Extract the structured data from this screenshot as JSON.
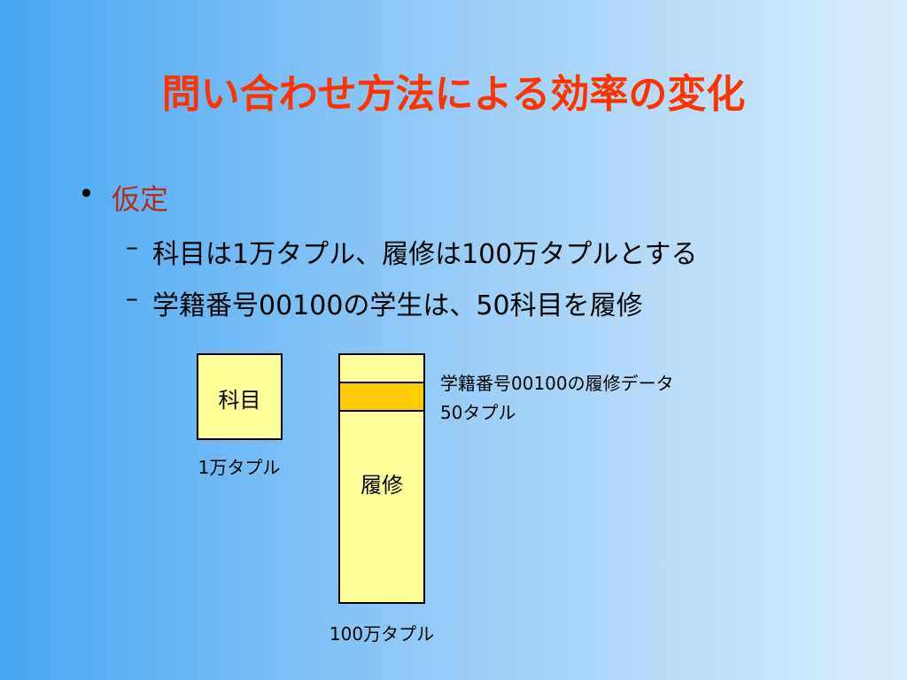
{
  "header": {
    "title": "問い合わせ方法による効率の変化"
  },
  "bullets": [
    {
      "text": "仮定",
      "sub": [
        "科目は1万タプル、履修は100万タプルとする",
        "学籍番号00100の学生は、50科目を履修"
      ]
    }
  ],
  "diagram": {
    "subject_box": {
      "label": "科目",
      "caption": "1万タプル"
    },
    "enroll_box": {
      "label": "履修",
      "caption": "100万タプル"
    },
    "highlight_note": [
      "学籍番号00100の履修データ",
      "50タプル"
    ]
  }
}
